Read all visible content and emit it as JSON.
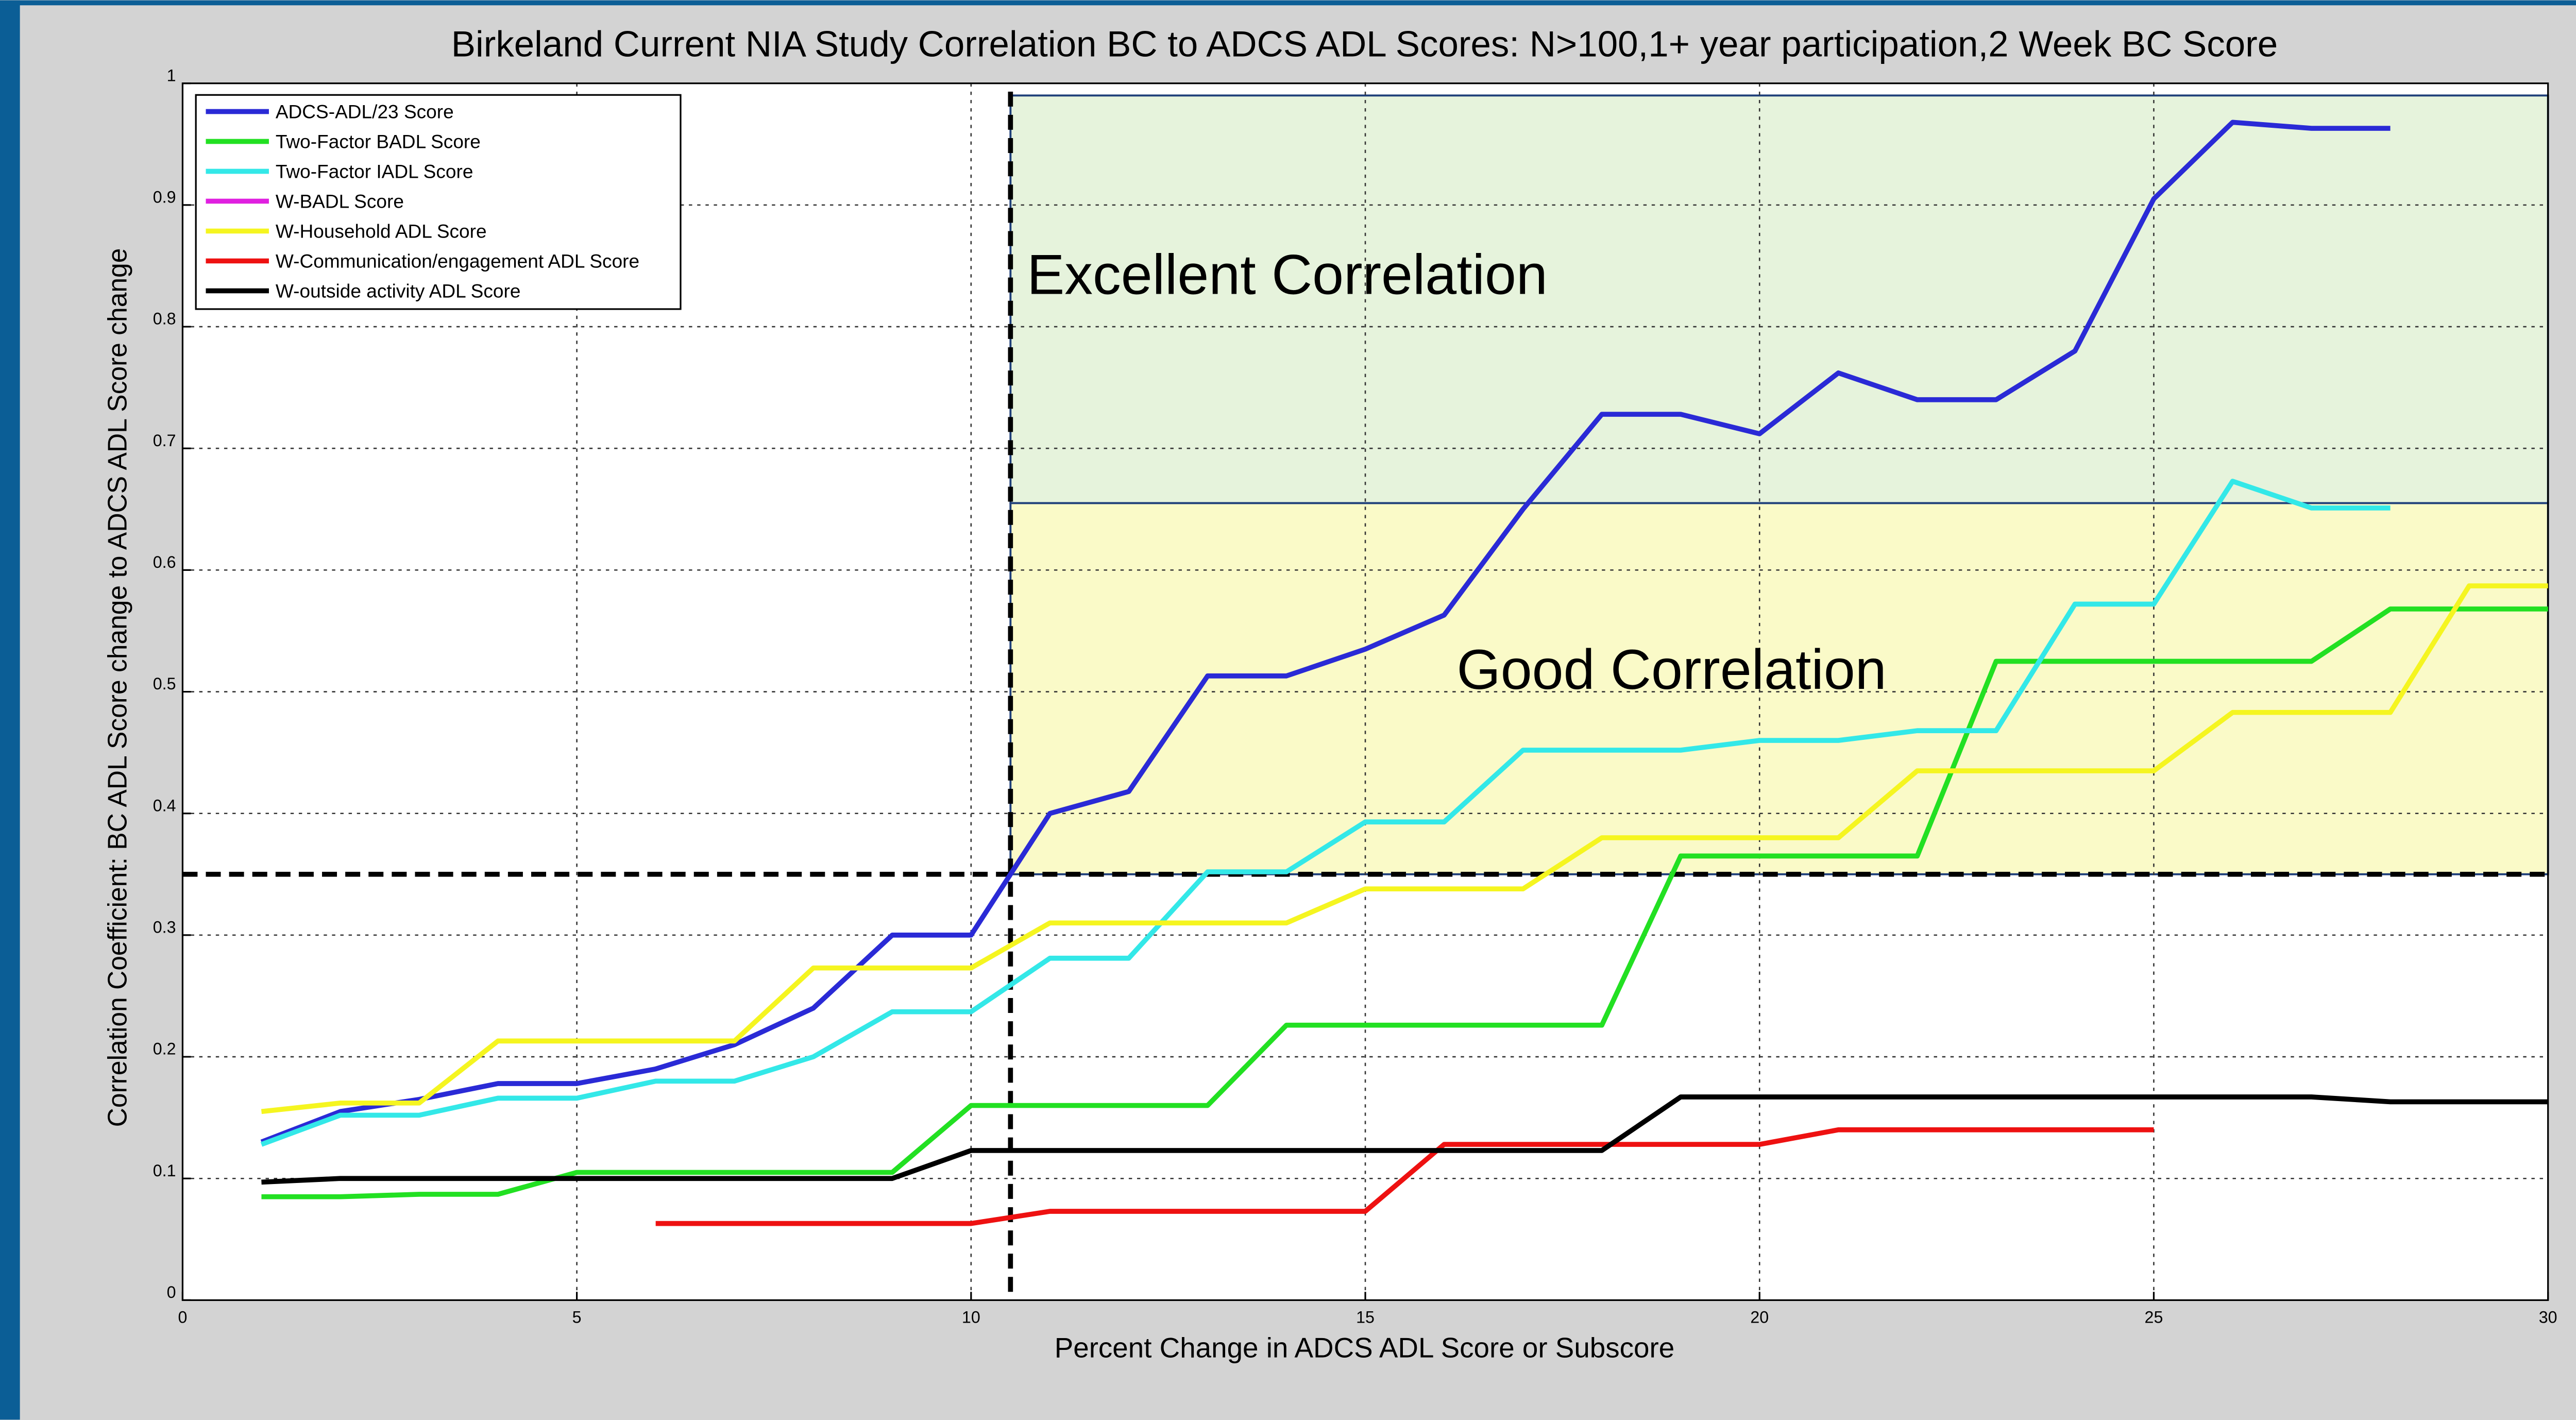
{
  "chart_data": {
    "type": "line",
    "title": "Birkeland Current NIA Study Correlation BC to ADCS ADL Scores: N>100,1+ year participation,2 Week BC Score",
    "xlabel": "Percent Change in ADCS ADL Score or Subscore",
    "ylabel": "Correlation Coefficient: BC ADL Score change to ADCS ADL Score change",
    "x": [
      1,
      2,
      3,
      4,
      5,
      6,
      7,
      8,
      9,
      10,
      11,
      12,
      13,
      14,
      15,
      16,
      17,
      18,
      19,
      20,
      21,
      22,
      23,
      24,
      25,
      26,
      27,
      28,
      29,
      30
    ],
    "series": [
      {
        "name": "ADCS-ADL/23 Score",
        "color": "#2a2ad6",
        "values": [
          0.13,
          0.155,
          0.165,
          0.178,
          0.178,
          0.19,
          0.21,
          0.24,
          0.3,
          0.3,
          0.4,
          0.418,
          0.513,
          0.513,
          0.535,
          0.563,
          0.65,
          0.728,
          0.728,
          0.712,
          0.762,
          0.74,
          0.74,
          0.78,
          0.905,
          0.968,
          0.963,
          0.963,
          null,
          null
        ]
      },
      {
        "name": "Two-Factor BADL Score",
        "color": "#22e022",
        "values": [
          0.085,
          0.085,
          0.087,
          0.087,
          0.105,
          0.105,
          0.105,
          0.105,
          0.105,
          0.16,
          0.16,
          0.16,
          0.16,
          0.226,
          0.226,
          0.226,
          0.226,
          0.226,
          0.365,
          0.365,
          0.365,
          0.365,
          0.525,
          0.525,
          0.525,
          0.525,
          0.525,
          0.568,
          0.568,
          0.568
        ]
      },
      {
        "name": "Two-Factor IADL Score",
        "color": "#33e8e8",
        "values": [
          0.128,
          0.152,
          0.152,
          0.166,
          0.166,
          0.18,
          0.18,
          0.2,
          0.237,
          0.237,
          0.281,
          0.281,
          0.352,
          0.352,
          0.393,
          0.393,
          0.452,
          0.452,
          0.452,
          0.46,
          0.46,
          0.468,
          0.468,
          0.572,
          0.572,
          0.673,
          0.651,
          0.651,
          null,
          null
        ]
      },
      {
        "name": "W-BADL Score",
        "color": "#e020e0",
        "values": [
          null,
          null,
          null,
          null,
          null,
          null,
          null,
          null,
          null,
          null,
          null,
          null,
          null,
          null,
          null,
          null,
          null,
          null,
          null,
          null,
          null,
          null,
          null,
          null,
          null,
          null,
          null,
          null,
          null,
          null
        ]
      },
      {
        "name": "W-Household ADL Score",
        "color": "#f5f520",
        "values": [
          0.155,
          0.162,
          0.162,
          0.213,
          0.213,
          0.213,
          0.213,
          0.273,
          0.273,
          0.273,
          0.31,
          0.31,
          0.31,
          0.31,
          0.338,
          0.338,
          0.338,
          0.38,
          0.38,
          0.38,
          0.38,
          0.435,
          0.435,
          0.435,
          0.435,
          0.483,
          0.483,
          0.483,
          0.587,
          0.587
        ]
      },
      {
        "name": "W-Communication/engagement ADL Score",
        "color": "#ee1111",
        "values": [
          null,
          null,
          null,
          null,
          null,
          0.063,
          0.063,
          0.063,
          0.063,
          0.063,
          0.073,
          0.073,
          0.073,
          0.073,
          0.073,
          0.128,
          0.128,
          0.128,
          0.128,
          0.128,
          0.14,
          0.14,
          0.14,
          0.14,
          0.14,
          null,
          null,
          null,
          null,
          null
        ]
      },
      {
        "name": "W-outside activity ADL Score",
        "color": "#000000",
        "values": [
          0.097,
          0.1,
          0.1,
          0.1,
          0.1,
          0.1,
          0.1,
          0.1,
          0.1,
          0.123,
          0.123,
          0.123,
          0.123,
          0.123,
          0.123,
          0.123,
          0.123,
          0.123,
          0.167,
          0.167,
          0.167,
          0.167,
          0.167,
          0.167,
          0.167,
          0.167,
          0.167,
          0.163,
          0.163,
          0.163
        ]
      }
    ],
    "xlim": [
      0,
      30
    ],
    "xticks": [
      0,
      5,
      10,
      15,
      20,
      25,
      30
    ],
    "ylim": [
      0,
      1
    ],
    "yticks": [
      0,
      0.1,
      0.2,
      0.3,
      0.4,
      0.5,
      0.6,
      0.7,
      0.8,
      0.9,
      1
    ],
    "grid": true,
    "legend": "upper left",
    "threshold_x": 10.5,
    "threshold_y": 0.35,
    "regions": [
      {
        "label": "Excellent Correlation",
        "color": "#e6f3dc",
        "xlim": [
          10.5,
          30
        ],
        "ylim": [
          0.655,
          0.99
        ]
      },
      {
        "label": "Good Correlation",
        "color": "#fafac8",
        "xlim": [
          10.5,
          30
        ],
        "ylim": [
          0.35,
          0.655
        ]
      }
    ]
  }
}
